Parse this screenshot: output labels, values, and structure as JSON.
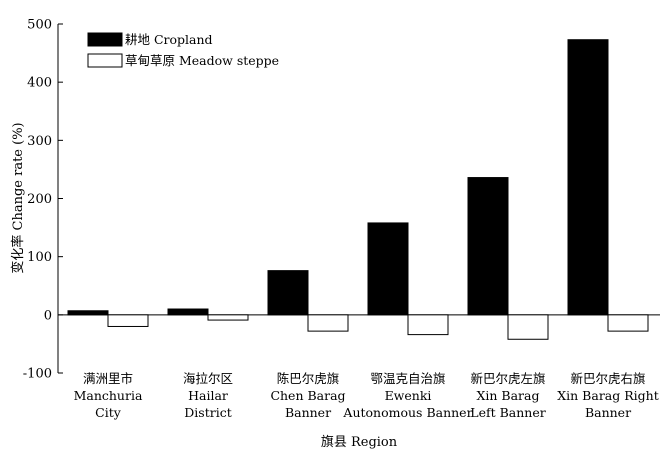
{
  "chart_data": {
    "type": "bar",
    "title": "",
    "ylabel": "变化率 Change rate (%)",
    "xlabel": "旗县 Region",
    "ylim": [
      -100,
      500
    ],
    "yticks": [
      -100,
      0,
      100,
      200,
      300,
      400,
      500
    ],
    "legend_position": "top-left",
    "categories": [
      [
        "满洲里市",
        "Manchuria",
        "City"
      ],
      [
        "海拉尔区",
        "Hailar",
        "District"
      ],
      [
        "陈巴尔虎旗",
        "Chen Barag",
        "Banner"
      ],
      [
        "鄂温克自治旗",
        "Ewenki",
        "Autonomous Banner"
      ],
      [
        "新巴尔虎左旗",
        "Xin Barag",
        "Left Banner"
      ],
      [
        "新巴尔虎右旗",
        "Xin Barag Right",
        "Banner"
      ]
    ],
    "series": [
      {
        "name": "耕地 Cropland",
        "fill": "#000000",
        "values": [
          7,
          10,
          76,
          158,
          236,
          473
        ]
      },
      {
        "name": "草甸草原 Meadow steppe",
        "fill": "#ffffff",
        "values": [
          -20,
          -9,
          -28,
          -34,
          -42,
          -28
        ]
      }
    ]
  }
}
